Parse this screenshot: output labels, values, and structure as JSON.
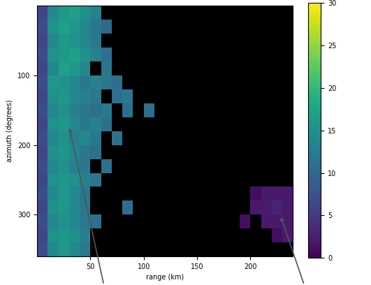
{
  "chart_data": {
    "type": "heatmap",
    "x_label": "range (km)",
    "y_label": "azimuth (degrees)",
    "xlim": [
      0,
      240
    ],
    "xticks": [
      50,
      100,
      150,
      200
    ],
    "ylim": [
      360,
      0
    ],
    "yticks": [
      100,
      200,
      300
    ],
    "x_bins": [
      0,
      10,
      20,
      30,
      40,
      50,
      60,
      70,
      80,
      90,
      100,
      110,
      120,
      130,
      140,
      150,
      160,
      170,
      180,
      190,
      200,
      210,
      220,
      230,
      240
    ],
    "y_bins": [
      0,
      20,
      40,
      60,
      80,
      100,
      120,
      140,
      160,
      180,
      200,
      220,
      240,
      260,
      280,
      300,
      320,
      340,
      360
    ],
    "cells": [
      [
        6,
        14,
        16,
        17,
        15,
        13,
        null,
        null,
        null,
        null,
        null,
        null,
        null,
        null,
        null,
        null,
        null,
        null,
        null,
        null,
        null,
        null,
        null,
        null
      ],
      [
        7,
        15,
        17,
        16,
        14,
        12,
        10,
        null,
        null,
        null,
        null,
        null,
        null,
        null,
        null,
        null,
        null,
        null,
        null,
        null,
        null,
        null,
        null,
        null
      ],
      [
        6,
        14,
        16,
        15,
        14,
        12,
        null,
        null,
        null,
        null,
        null,
        null,
        null,
        null,
        null,
        null,
        null,
        null,
        null,
        null,
        null,
        null,
        null,
        null
      ],
      [
        7,
        15,
        16,
        17,
        15,
        13,
        11,
        null,
        null,
        null,
        null,
        null,
        null,
        null,
        null,
        null,
        null,
        null,
        null,
        null,
        null,
        null,
        null,
        null
      ],
      [
        6,
        14,
        17,
        16,
        14,
        null,
        12,
        null,
        null,
        null,
        null,
        null,
        null,
        null,
        null,
        null,
        null,
        null,
        null,
        null,
        null,
        null,
        null,
        null
      ],
      [
        7,
        16,
        15,
        14,
        12,
        13,
        12,
        11,
        null,
        null,
        null,
        null,
        null,
        null,
        null,
        null,
        null,
        null,
        null,
        null,
        null,
        null,
        null,
        null
      ],
      [
        6,
        15,
        16,
        14,
        13,
        12,
        null,
        11,
        12,
        null,
        null,
        null,
        null,
        null,
        null,
        null,
        null,
        null,
        null,
        null,
        null,
        null,
        null,
        null
      ],
      [
        7,
        14,
        15,
        13,
        12,
        11,
        12,
        null,
        11,
        null,
        11,
        null,
        null,
        null,
        null,
        null,
        null,
        null,
        null,
        null,
        null,
        null,
        null,
        null
      ],
      [
        6,
        15,
        16,
        14,
        12,
        13,
        11,
        null,
        null,
        null,
        null,
        null,
        null,
        null,
        null,
        null,
        null,
        null,
        null,
        null,
        null,
        null,
        null,
        null
      ],
      [
        7,
        14,
        15,
        13,
        14,
        12,
        null,
        11,
        null,
        null,
        null,
        null,
        null,
        null,
        null,
        null,
        null,
        null,
        null,
        null,
        null,
        null,
        null,
        null
      ],
      [
        6,
        15,
        16,
        14,
        12,
        11,
        null,
        null,
        null,
        null,
        null,
        null,
        null,
        null,
        null,
        null,
        null,
        null,
        null,
        null,
        null,
        null,
        null,
        null
      ],
      [
        7,
        14,
        15,
        13,
        12,
        null,
        11,
        null,
        null,
        null,
        null,
        null,
        null,
        null,
        null,
        null,
        null,
        null,
        null,
        null,
        null,
        null,
        null,
        null
      ],
      [
        6,
        15,
        16,
        15,
        13,
        12,
        null,
        null,
        null,
        null,
        null,
        null,
        null,
        null,
        null,
        null,
        null,
        null,
        null,
        null,
        null,
        null,
        null,
        null
      ],
      [
        7,
        14,
        16,
        14,
        12,
        null,
        null,
        null,
        null,
        null,
        null,
        null,
        null,
        null,
        null,
        null,
        null,
        null,
        null,
        null,
        1,
        2,
        2,
        2
      ],
      [
        6,
        15,
        16,
        14,
        12,
        null,
        null,
        null,
        11,
        null,
        null,
        null,
        null,
        null,
        null,
        null,
        null,
        null,
        null,
        null,
        2,
        2,
        3,
        2
      ],
      [
        7,
        14,
        15,
        14,
        12,
        11,
        null,
        null,
        null,
        null,
        null,
        null,
        null,
        null,
        null,
        null,
        null,
        null,
        null,
        1,
        null,
        2,
        2,
        2
      ],
      [
        6,
        15,
        16,
        15,
        13,
        null,
        null,
        null,
        null,
        null,
        null,
        null,
        null,
        null,
        null,
        null,
        null,
        null,
        null,
        null,
        null,
        null,
        1,
        2
      ],
      [
        7,
        14,
        16,
        14,
        12,
        null,
        null,
        null,
        null,
        null,
        null,
        null,
        null,
        null,
        null,
        null,
        null,
        null,
        null,
        null,
        null,
        null,
        null,
        null
      ]
    ],
    "colorbar": {
      "range": [
        0,
        30
      ],
      "ticks": [
        0,
        5,
        10,
        15,
        20,
        25,
        30
      ]
    }
  }
}
